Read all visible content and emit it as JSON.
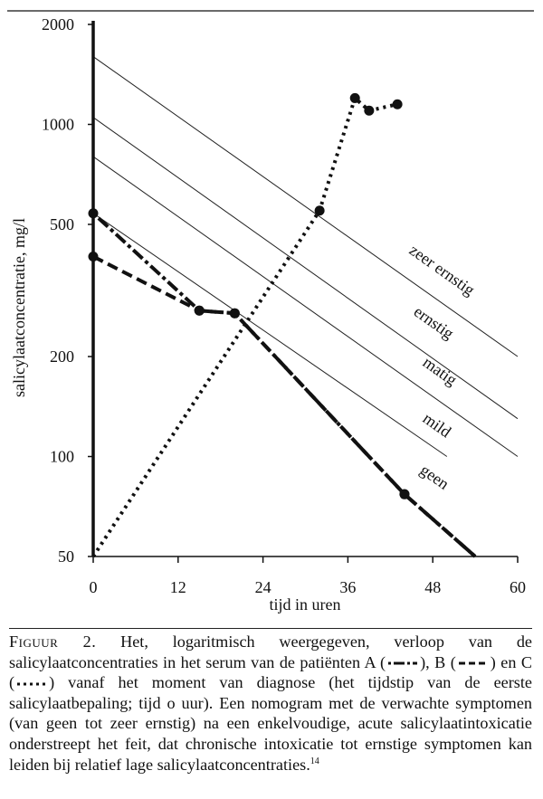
{
  "chart_data": {
    "type": "line",
    "ylabel": "salicylaatconcentratie, mg/l",
    "xlabel": "tijd in uren",
    "y_scale": "log",
    "ylim": [
      50,
      2000
    ],
    "xlim": [
      0,
      60
    ],
    "x_ticks": [
      0,
      12,
      24,
      36,
      48,
      60
    ],
    "y_ticks": [
      50,
      100,
      200,
      500,
      1000,
      2000
    ],
    "x_tick_labels": [
      "0",
      "12",
      "24",
      "36",
      "48",
      "60"
    ],
    "y_tick_labels": [
      "50",
      "100",
      "200",
      "500",
      "1000",
      "2000"
    ],
    "grid": false,
    "nomogram_lines": [
      {
        "label": "zeer ernstig",
        "x": [
          0,
          60
        ],
        "y": [
          1600,
          200
        ]
      },
      {
        "label": "ernstig",
        "x": [
          0,
          60
        ],
        "y": [
          1050,
          130
        ]
      },
      {
        "label": "matig",
        "x": [
          0,
          60
        ],
        "y": [
          800,
          100
        ]
      },
      {
        "label": "mild",
        "x": [
          0,
          50
        ],
        "y": [
          540,
          100
        ]
      }
    ],
    "zone_labels": [
      "zeer ernstig",
      "ernstig",
      "matig",
      "mild",
      "geen"
    ],
    "series": [
      {
        "name": "A",
        "style": "dash-dot",
        "x": [
          0,
          15,
          20,
          44,
          54
        ],
        "y": [
          540,
          275,
          270,
          77,
          50
        ],
        "markers_x": [
          0,
          15,
          20,
          44
        ],
        "markers_y": [
          540,
          275,
          270,
          77
        ]
      },
      {
        "name": "B",
        "style": "dashed",
        "x": [
          0,
          15,
          20,
          44,
          54
        ],
        "y": [
          400,
          275,
          270,
          77,
          50
        ],
        "markers_x": [
          0,
          15,
          20,
          44
        ],
        "markers_y": [
          400,
          275,
          270,
          77
        ]
      },
      {
        "name": "C",
        "style": "dotted",
        "x": [
          0,
          32,
          37,
          39,
          43
        ],
        "y": [
          50,
          550,
          1200,
          1100,
          1150
        ],
        "markers_x": [
          32,
          37,
          39,
          43
        ],
        "markers_y": [
          550,
          1200,
          1100,
          1150
        ]
      }
    ]
  },
  "caption": {
    "lead": "Figuur 2.",
    "part1": " Het, logaritmisch weergegeven, verloop van de salicylaatconcentraties in het serum van de patiënten A (",
    "part2": "), B (",
    "part3": ") en C (",
    "part4": ") vanaf het moment van diagnose (het tijdstip van de eerste salicylaatbepaling; tijd o uur). Een nomogram met de verwachte symptomen (van geen tot zeer ernstig) na een enkelvoudige, acute salicylaatintoxicatie onderstreept het feit, dat chronische intoxicatie tot ernstige symptomen kan leiden bij relatief lage salicylaatconcentraties.",
    "ref": "14"
  }
}
